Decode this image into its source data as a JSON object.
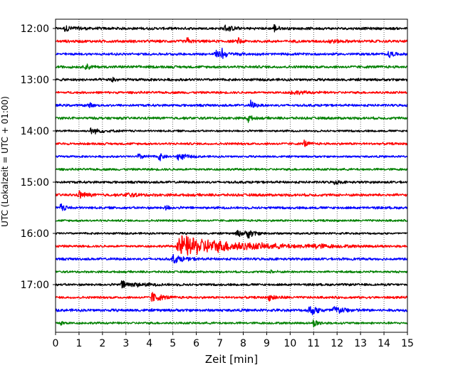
{
  "chart_data": {
    "type": "line",
    "title": "",
    "xlabel": "Zeit  [min]",
    "ylabel": "UTC (Lokalzeit = UTC + 01:00)",
    "x_ticks": [
      "0",
      "1",
      "2",
      "3",
      "4",
      "5",
      "6",
      "7",
      "8",
      "9",
      "10",
      "11",
      "12",
      "13",
      "14",
      "15"
    ],
    "xlim": [
      0,
      15
    ],
    "y_tick_labels": [
      "12:00",
      "13:00",
      "14:00",
      "15:00",
      "16:00",
      "17:00"
    ],
    "trace_start_times": [
      "12:00",
      "12:15",
      "12:30",
      "12:45",
      "13:00",
      "13:15",
      "13:30",
      "13:45",
      "14:00",
      "14:15",
      "14:30",
      "14:45",
      "15:00",
      "15:15",
      "15:30",
      "15:45",
      "16:00",
      "16:15",
      "16:30",
      "16:45",
      "17:00",
      "17:15",
      "17:30",
      "17:45"
    ],
    "trace_colors": [
      "#000000",
      "#ff0000",
      "#0000ff",
      "#008000"
    ],
    "grid": "vertical dotted at each minute",
    "events": [
      {
        "trace": 0,
        "t": 0.4,
        "amp": 0.45,
        "dur": 0.5
      },
      {
        "trace": 0,
        "t": 7.2,
        "amp": 0.6,
        "dur": 0.3
      },
      {
        "trace": 0,
        "t": 9.3,
        "amp": 0.7,
        "dur": 0.15
      },
      {
        "trace": 1,
        "t": 5.6,
        "amp": 0.8,
        "dur": 0.1
      },
      {
        "trace": 1,
        "t": 7.8,
        "amp": 0.7,
        "dur": 0.1
      },
      {
        "trace": 1,
        "t": 11.6,
        "amp": 0.4,
        "dur": 0.3
      },
      {
        "trace": 2,
        "t": 6.8,
        "amp": 0.5,
        "dur": 0.5
      },
      {
        "trace": 2,
        "t": 7.1,
        "amp": 0.9,
        "dur": 0.08
      },
      {
        "trace": 2,
        "t": 14.2,
        "amp": 0.7,
        "dur": 0.15
      },
      {
        "trace": 3,
        "t": 1.3,
        "amp": 0.6,
        "dur": 0.15
      },
      {
        "trace": 4,
        "t": 2.4,
        "amp": 0.5,
        "dur": 0.15
      },
      {
        "trace": 5,
        "t": 10.0,
        "amp": 0.3,
        "dur": 0.6
      },
      {
        "trace": 6,
        "t": 1.4,
        "amp": 0.6,
        "dur": 0.1
      },
      {
        "trace": 6,
        "t": 8.3,
        "amp": 0.9,
        "dur": 0.15
      },
      {
        "trace": 7,
        "t": 8.2,
        "amp": 0.9,
        "dur": 0.1
      },
      {
        "trace": 8,
        "t": 1.5,
        "amp": 0.55,
        "dur": 0.4
      },
      {
        "trace": 9,
        "t": 10.6,
        "amp": 0.6,
        "dur": 0.15
      },
      {
        "trace": 10,
        "t": 3.5,
        "amp": 0.45,
        "dur": 0.3
      },
      {
        "trace": 10,
        "t": 4.4,
        "amp": 0.8,
        "dur": 0.15
      },
      {
        "trace": 10,
        "t": 5.2,
        "amp": 0.7,
        "dur": 0.3
      },
      {
        "trace": 12,
        "t": 11.9,
        "amp": 0.5,
        "dur": 0.12
      },
      {
        "trace": 13,
        "t": 1.0,
        "amp": 0.6,
        "dur": 0.3
      },
      {
        "trace": 13,
        "t": 3.0,
        "amp": 0.35,
        "dur": 0.4
      },
      {
        "trace": 14,
        "t": 0.2,
        "amp": 0.7,
        "dur": 0.2
      },
      {
        "trace": 14,
        "t": 4.7,
        "amp": 0.6,
        "dur": 0.1
      },
      {
        "trace": 16,
        "t": 7.7,
        "amp": 0.5,
        "dur": 0.5
      },
      {
        "trace": 16,
        "t": 8.2,
        "amp": 0.7,
        "dur": 0.2
      },
      {
        "trace": 17,
        "t": 5.2,
        "amp": 1.9,
        "dur": 2.2
      },
      {
        "trace": 17,
        "t": 11.0,
        "amp": 0.35,
        "dur": 0.4
      },
      {
        "trace": 18,
        "t": 5.0,
        "amp": 0.7,
        "dur": 0.4
      },
      {
        "trace": 19,
        "t": 9.2,
        "amp": 0.4,
        "dur": 0.15
      },
      {
        "trace": 20,
        "t": 2.8,
        "amp": 0.6,
        "dur": 0.7
      },
      {
        "trace": 21,
        "t": 4.1,
        "amp": 0.9,
        "dur": 0.35
      },
      {
        "trace": 21,
        "t": 9.1,
        "amp": 0.5,
        "dur": 0.3
      },
      {
        "trace": 22,
        "t": 10.8,
        "amp": 0.9,
        "dur": 0.35
      },
      {
        "trace": 22,
        "t": 11.8,
        "amp": 0.8,
        "dur": 0.4
      },
      {
        "trace": 23,
        "t": 0.2,
        "amp": 0.6,
        "dur": 0.1
      },
      {
        "trace": 23,
        "t": 11.0,
        "amp": 0.7,
        "dur": 0.2
      }
    ]
  }
}
